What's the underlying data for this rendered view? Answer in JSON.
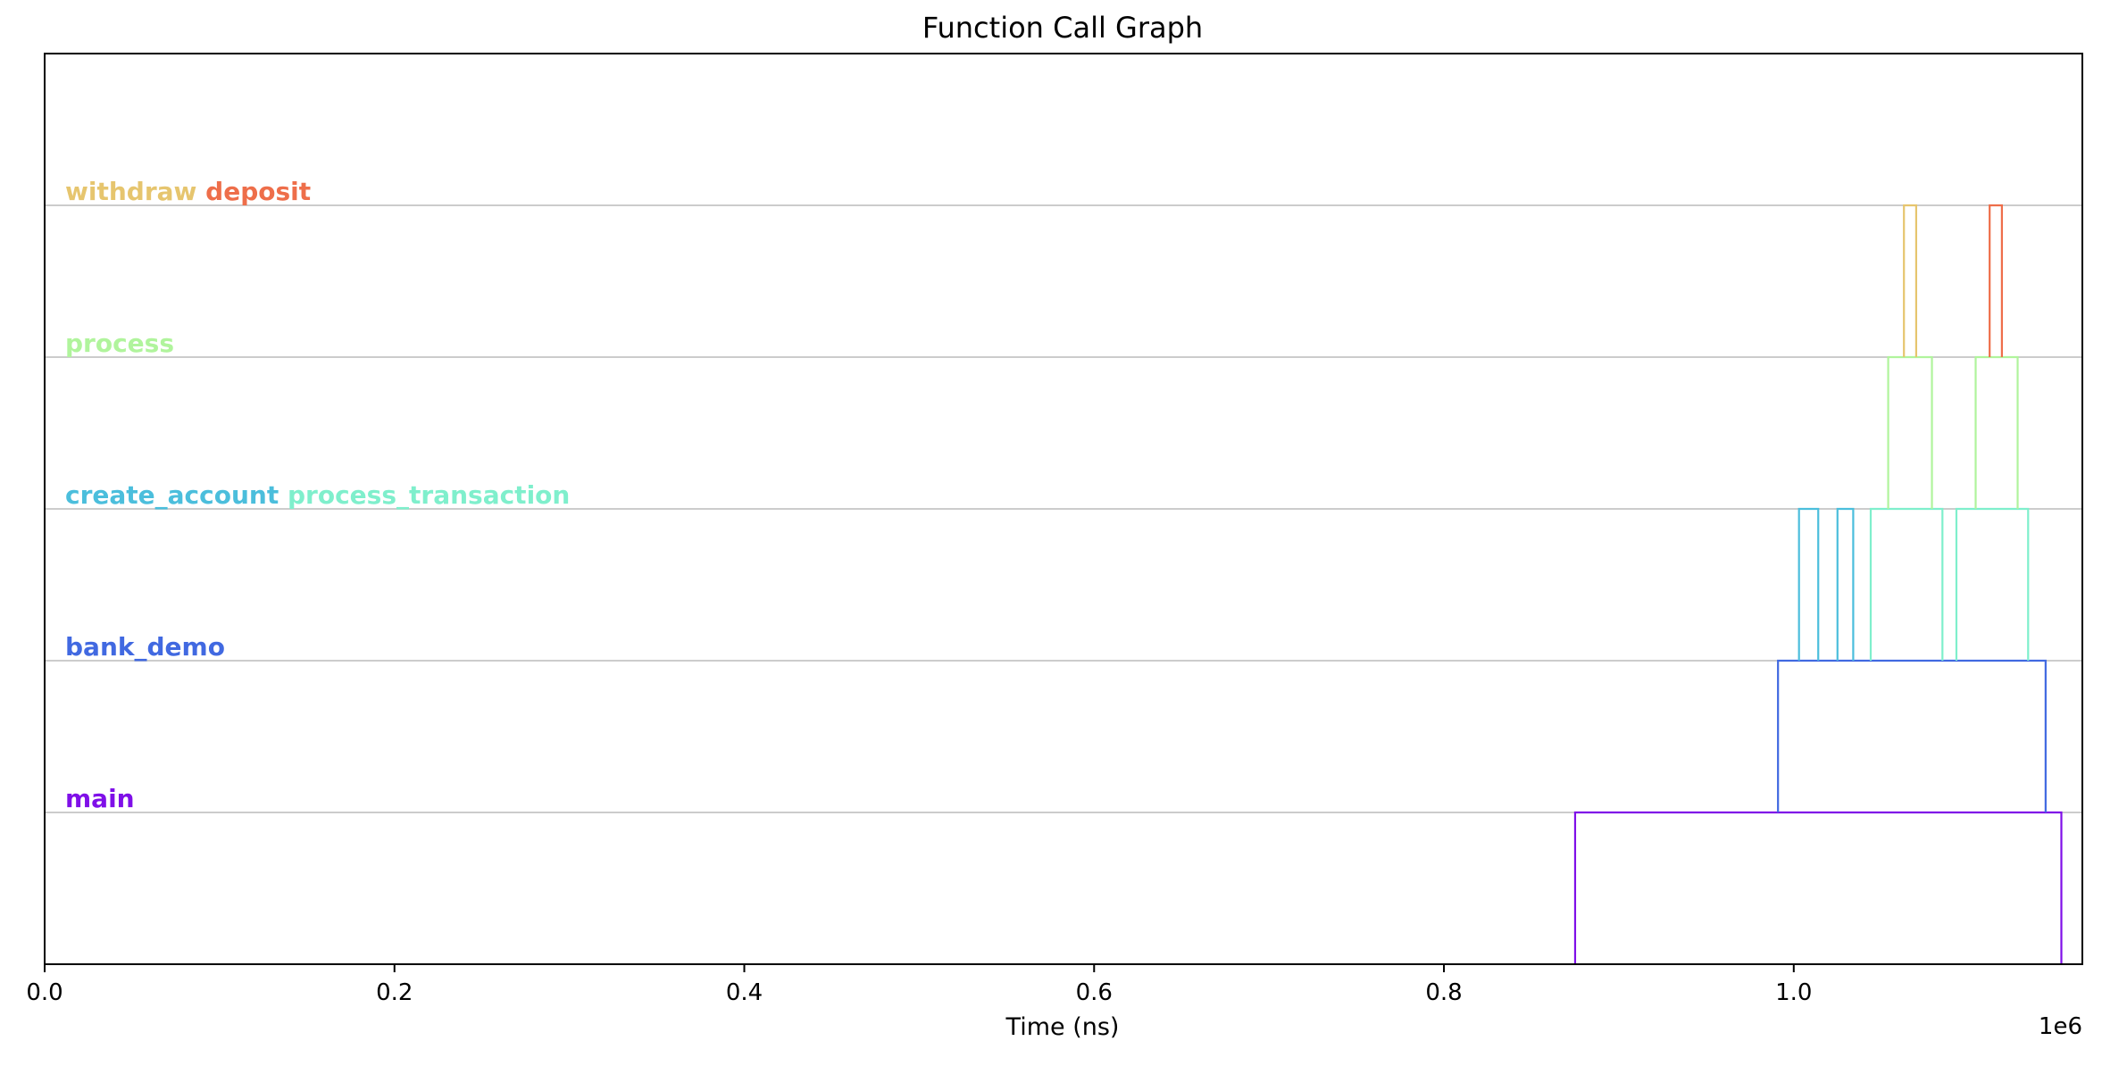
{
  "chart_data": {
    "type": "line",
    "title": "Function Call Graph",
    "xlabel": "Time (ns)",
    "ylabel": "",
    "x_scale_label": "1e6",
    "xlim": [
      0,
      1165000
    ],
    "ylim": [
      -1,
      5
    ],
    "x_ticks": [
      {
        "value": 0,
        "label": "0.0"
      },
      {
        "value": 200000,
        "label": "0.2"
      },
      {
        "value": 400000,
        "label": "0.4"
      },
      {
        "value": 600000,
        "label": "0.6"
      },
      {
        "value": 800000,
        "label": "0.8"
      },
      {
        "value": 1000000,
        "label": "1.0"
      }
    ],
    "levels": [
      0,
      1,
      2,
      3,
      4
    ],
    "label_rows": [
      {
        "level": 0,
        "labels": [
          {
            "text": "main",
            "color": "#7f0fe8"
          }
        ]
      },
      {
        "level": 1,
        "labels": [
          {
            "text": "bank_demo",
            "color": "#4169e1"
          }
        ]
      },
      {
        "level": 2,
        "labels": [
          {
            "text": "create_account",
            "color": "#4bbedc"
          },
          {
            "text": "process_transaction",
            "color": "#7fefcc"
          }
        ]
      },
      {
        "level": 3,
        "labels": [
          {
            "text": "process",
            "color": "#b0f49c"
          }
        ]
      },
      {
        "level": 4,
        "labels": [
          {
            "text": "withdraw",
            "color": "#e6c56e"
          },
          {
            "text": "deposit",
            "color": "#ee6e4a"
          }
        ]
      }
    ],
    "series": [
      {
        "name": "main",
        "color": "#7f0fe8",
        "baseline": -1,
        "level": 0,
        "calls": [
          [
            875000,
            1153000
          ]
        ]
      },
      {
        "name": "bank_demo",
        "color": "#4169e1",
        "baseline": 0,
        "level": 1,
        "calls": [
          [
            991000,
            1144000
          ]
        ]
      },
      {
        "name": "create_account",
        "color": "#4bbedc",
        "baseline": 1,
        "level": 2,
        "calls": [
          [
            1003000,
            1014000
          ],
          [
            1025000,
            1034000
          ]
        ]
      },
      {
        "name": "process_transaction",
        "color": "#7fefcc",
        "baseline": 1,
        "level": 2,
        "calls": [
          [
            1044000,
            1085000
          ],
          [
            1093000,
            1134000
          ]
        ]
      },
      {
        "name": "process",
        "color": "#b0f49c",
        "baseline": 2,
        "level": 3,
        "calls": [
          [
            1054000,
            1079000
          ],
          [
            1104000,
            1128000
          ]
        ]
      },
      {
        "name": "withdraw",
        "color": "#e6c56e",
        "baseline": 3,
        "level": 4,
        "calls": [
          [
            1063000,
            1070000
          ]
        ]
      },
      {
        "name": "deposit",
        "color": "#ee6e4a",
        "baseline": 3,
        "level": 4,
        "calls": [
          [
            1112000,
            1119000
          ]
        ]
      }
    ]
  }
}
